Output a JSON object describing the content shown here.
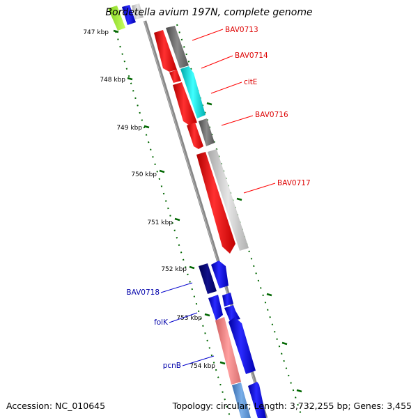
{
  "title": "Bordetella avium 197N, complete genome",
  "footer": {
    "accession": "Accession: NC_010645",
    "topology": "Topology: circular; Length: 3,732,255 bp; Genes: 3,455"
  },
  "ticks": [
    "747 kbp",
    "748 kbp",
    "749 kbp",
    "750 kbp",
    "751 kbp",
    "752 kbp",
    "753 kbp",
    "754 kbp"
  ],
  "genes": [
    "BAV0713",
    "BAV0714",
    "citE",
    "BAV0716",
    "BAV0717",
    "BAV0718",
    "folK",
    "pcnB"
  ],
  "colors": {
    "red_genes": "#ff0000",
    "blue_genes": "#0000ff",
    "dark_navy": "#000080",
    "gray": "#666666",
    "light_gray": "#bfbfbf",
    "cyan": "#00e0e0",
    "pink": "#f08080",
    "tick_green": "#006600",
    "backbone": "#888888"
  }
}
